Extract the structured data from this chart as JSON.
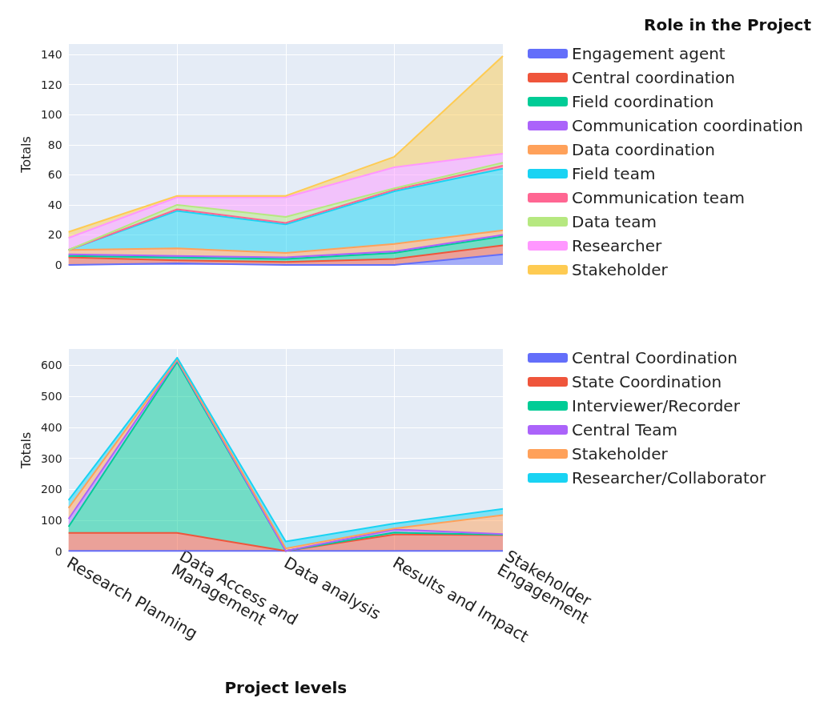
{
  "chart_data": [
    {
      "type": "area",
      "stacked": true,
      "ylabel": "Totals",
      "legend_title": "Role in the Project",
      "legend": "right",
      "grid": true,
      "tick_labels": "y",
      "line_style": "solid",
      "marker": "none",
      "categories": [
        "Research Planning",
        "Data Access and Management",
        "Data analysis",
        "Results and Impact",
        "Stakeholder Engagement"
      ],
      "ylim": [
        0,
        147
      ],
      "yticks": [
        0,
        20,
        40,
        60,
        80,
        100,
        120,
        140
      ],
      "series": [
        {
          "name": "Engagement agent",
          "color": "#636efa",
          "values": [
            0,
            1,
            0,
            0,
            7
          ]
        },
        {
          "name": "Central coordination",
          "color": "#ef553b",
          "values": [
            5,
            2,
            2,
            4,
            6
          ]
        },
        {
          "name": "Field coordination",
          "color": "#00cc96",
          "values": [
            1,
            2,
            2,
            4,
            6
          ]
        },
        {
          "name": "Communication coordination",
          "color": "#ab63fa",
          "values": [
            1,
            1,
            1,
            1,
            1
          ]
        },
        {
          "name": "Data coordination",
          "color": "#ffa15a",
          "values": [
            3,
            5,
            3,
            5,
            3
          ]
        },
        {
          "name": "Field team",
          "color": "#19d3f3",
          "values": [
            0,
            25,
            19,
            35,
            41
          ]
        },
        {
          "name": "Communication team",
          "color": "#ff6692",
          "values": [
            0,
            1,
            1,
            1,
            2
          ]
        },
        {
          "name": "Data team",
          "color": "#b6e880",
          "values": [
            0,
            3,
            4,
            1,
            2
          ]
        },
        {
          "name": "Researcher",
          "color": "#ff97ff",
          "values": [
            8,
            5,
            13,
            14,
            6
          ]
        },
        {
          "name": "Stakeholder",
          "color": "#fecb52",
          "values": [
            4,
            1,
            1,
            7,
            65
          ]
        }
      ]
    },
    {
      "type": "area",
      "stacked": true,
      "ylabel": "Totals",
      "xlabel": "Project levels",
      "legend": "right",
      "grid": true,
      "line_style": "solid",
      "marker": "none",
      "categories": [
        "Research Planning",
        "Data Access and Management",
        "Data analysis",
        "Results and Impact",
        "Stakeholder Engagement"
      ],
      "ylim": [
        0,
        652
      ],
      "yticks": [
        0,
        100,
        200,
        300,
        400,
        500,
        600
      ],
      "series": [
        {
          "name": "Central Coordination",
          "color": "#636efa",
          "values": [
            2,
            2,
            2,
            2,
            2
          ]
        },
        {
          "name": "State Coordination",
          "color": "#ef553b",
          "values": [
            58,
            58,
            0,
            53,
            51
          ]
        },
        {
          "name": "Interviewer/Recorder",
          "color": "#00cc96",
          "values": [
            20,
            550,
            0,
            6,
            1
          ]
        },
        {
          "name": "Central Team",
          "color": "#ab63fa",
          "values": [
            25,
            6,
            0,
            10,
            2
          ]
        },
        {
          "name": "Stakeholder",
          "color": "#ffa15a",
          "values": [
            35,
            3,
            8,
            3,
            61
          ]
        },
        {
          "name": "Researcher/Collaborator",
          "color": "#19d3f3",
          "values": [
            25,
            5,
            22,
            16,
            20
          ]
        }
      ]
    }
  ]
}
